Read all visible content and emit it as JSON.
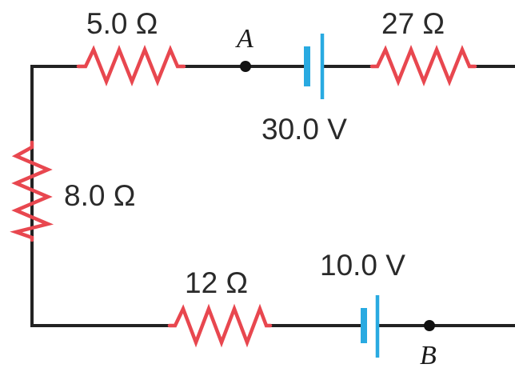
{
  "resistors": {
    "top_left": "5.0 Ω",
    "top_right": "27 Ω",
    "left": "8.0 Ω",
    "bottom": "12 Ω"
  },
  "batteries": {
    "top": "30.0 V",
    "bottom": "10.0 V"
  },
  "points": {
    "a": "A",
    "b": "B"
  },
  "colors": {
    "wire": "#222222",
    "resistor": "#e8474f",
    "battery": "#29aae1"
  }
}
